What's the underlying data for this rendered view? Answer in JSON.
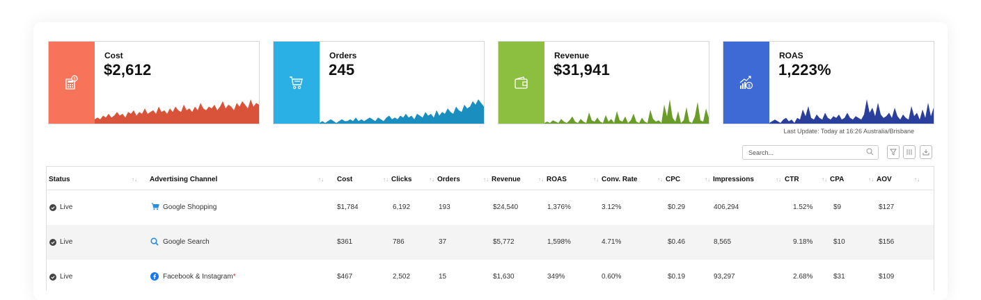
{
  "cards": [
    {
      "label": "Cost",
      "value": "$2,612",
      "side_color": "#f7735a",
      "chart_color": "#d9533a",
      "icon": "calculator-dollar-icon",
      "series": [
        2,
        3,
        2,
        4,
        3,
        5,
        3,
        4,
        6,
        4,
        5,
        3,
        6,
        5,
        7,
        4,
        6,
        5,
        8,
        5,
        6,
        7,
        5,
        9,
        6,
        7,
        5,
        8,
        6,
        9,
        7,
        6,
        10,
        7,
        8,
        6,
        9,
        7,
        11,
        8,
        7,
        9,
        8,
        10,
        7,
        9,
        12,
        8,
        10,
        9,
        7,
        11,
        9,
        12,
        10,
        8,
        13,
        9,
        11,
        10
      ]
    },
    {
      "label": "Orders",
      "value": "245",
      "side_color": "#2bb0e6",
      "chart_color": "#1a8fbf",
      "icon": "cart-icon",
      "series": [
        0,
        1,
        0,
        1,
        2,
        1,
        0,
        1,
        2,
        1,
        1,
        2,
        1,
        3,
        1,
        2,
        1,
        2,
        3,
        2,
        1,
        3,
        2,
        1,
        3,
        4,
        2,
        3,
        2,
        4,
        3,
        5,
        3,
        4,
        2,
        5,
        4,
        3,
        6,
        4,
        5,
        3,
        7,
        4,
        6,
        5,
        8,
        6,
        5,
        9,
        7,
        6,
        10,
        8,
        9,
        12,
        10,
        13,
        11,
        9
      ]
    },
    {
      "label": "Revenue",
      "value": "$31,941",
      "side_color": "#8cbf3f",
      "chart_color": "#6a9c2a",
      "icon": "wallet-icon",
      "series": [
        0,
        1,
        0,
        2,
        1,
        0,
        3,
        1,
        0,
        2,
        5,
        1,
        0,
        3,
        1,
        0,
        8,
        2,
        1,
        4,
        1,
        0,
        6,
        1,
        3,
        0,
        9,
        2,
        1,
        5,
        0,
        2,
        7,
        1,
        0,
        4,
        1,
        0,
        10,
        3,
        1,
        2,
        0,
        14,
        5,
        18,
        4,
        1,
        9,
        0,
        2,
        12,
        1,
        0,
        5,
        16,
        2,
        1,
        11,
        4
      ]
    },
    {
      "label": "ROAS",
      "value": "1,223%",
      "side_color": "#3e6ad6",
      "chart_color": "#2a3f9c",
      "icon": "growth-chart-icon",
      "series": [
        0,
        1,
        2,
        1,
        0,
        2,
        3,
        1,
        2,
        0,
        3,
        2,
        8,
        4,
        10,
        3,
        2,
        5,
        3,
        2,
        6,
        3,
        2,
        4,
        3,
        5,
        2,
        3,
        6,
        3,
        2,
        4,
        3,
        2,
        5,
        14,
        6,
        9,
        4,
        12,
        5,
        3,
        4,
        6,
        3,
        9,
        4,
        2,
        5,
        3,
        2,
        10,
        4,
        6,
        2,
        8,
        3,
        12,
        4,
        9
      ]
    }
  ],
  "last_update": "Last Update: Today at 16:26 Australia/Brisbane",
  "search": {
    "placeholder": "Search..."
  },
  "columns": [
    "Status",
    "Advertising Channel",
    "Cost",
    "Clicks",
    "Orders",
    "Revenue",
    "ROAS",
    "Conv. Rate",
    "CPC",
    "Impressions",
    "CTR",
    "CPA",
    "AOV"
  ],
  "rows": [
    {
      "status": "Live",
      "channel": "Google Shopping",
      "channel_icon": "shopping-cart-icon",
      "required": "",
      "cost": "$1,784",
      "clicks": "6,192",
      "orders": "193",
      "revenue": "$24,540",
      "roas": "1,376%",
      "conv": "3.12%",
      "cpc": "$0.29",
      "impressions": "406,294",
      "ctr": "1.52%",
      "cpa": "$9",
      "aov": "$127"
    },
    {
      "status": "Live",
      "channel": "Google Search",
      "channel_icon": "search-icon",
      "required": "",
      "cost": "$361",
      "clicks": "786",
      "orders": "37",
      "revenue": "$5,772",
      "roas": "1,598%",
      "conv": "4.71%",
      "cpc": "$0.46",
      "impressions": "8,565",
      "ctr": "9.18%",
      "cpa": "$10",
      "aov": "$156"
    },
    {
      "status": "Live",
      "channel": "Facebook & Instagram",
      "channel_icon": "facebook-icon",
      "required": "*",
      "cost": "$467",
      "clicks": "2,502",
      "orders": "15",
      "revenue": "$1,630",
      "roas": "349%",
      "conv": "0.60%",
      "cpc": "$0.19",
      "impressions": "93,297",
      "ctr": "2.68%",
      "cpa": "$31",
      "aov": "$109"
    }
  ]
}
